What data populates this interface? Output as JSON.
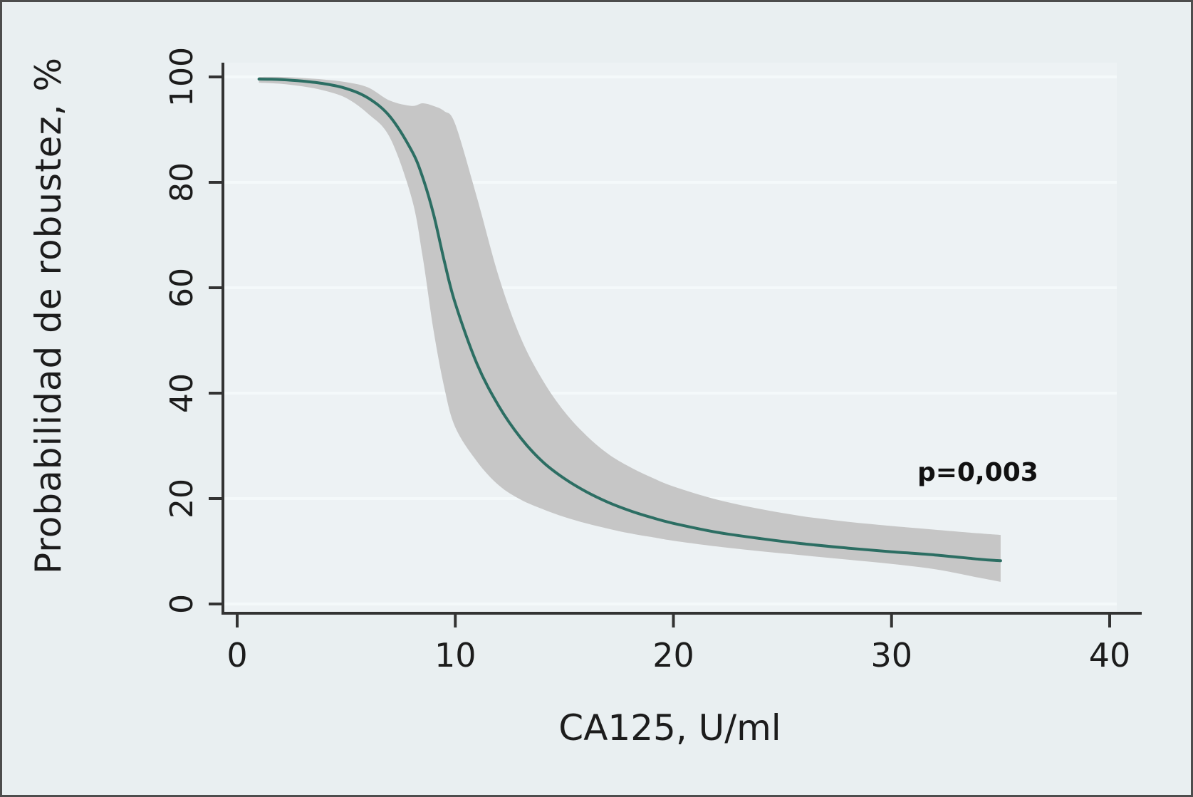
{
  "chart_data": {
    "type": "line",
    "title": "",
    "xlabel": "CA125, U/ml",
    "ylabel": "Probabilidad de robustez, %",
    "xlim": [
      0,
      40
    ],
    "ylim": [
      0,
      100
    ],
    "x_ticks": [
      0,
      10,
      20,
      30,
      40
    ],
    "y_ticks": [
      0,
      20,
      40,
      60,
      80,
      100
    ],
    "grid": "horizontal",
    "legend": "none",
    "annotation": "p=0,003",
    "annotation_xy": [
      33,
      24
    ],
    "x": [
      1,
      2,
      3,
      4,
      5,
      6,
      7,
      8,
      8.5,
      9,
      9.5,
      10,
      11,
      12,
      13,
      14,
      15,
      16,
      17,
      18,
      19,
      20,
      22,
      24,
      26,
      28,
      30,
      32,
      34,
      35
    ],
    "series": [
      {
        "name": "fitted probability",
        "values": [
          99.6,
          99.5,
          99.2,
          98.7,
          97.8,
          96.0,
          92.5,
          86.0,
          81.0,
          74.0,
          65.0,
          57.0,
          45.5,
          37.5,
          31.5,
          27.0,
          23.8,
          21.3,
          19.3,
          17.7,
          16.4,
          15.3,
          13.6,
          12.4,
          11.4,
          10.6,
          9.9,
          9.3,
          8.5,
          8.2
        ]
      },
      {
        "name": "95% CI upper",
        "values": [
          100,
          100,
          99.8,
          99.5,
          99.0,
          98.0,
          95.5,
          94.5,
          95.0,
          94.5,
          93.5,
          91.0,
          77.0,
          62.0,
          50.5,
          42.5,
          36.5,
          32.0,
          28.5,
          26.0,
          24.0,
          22.3,
          19.8,
          18.0,
          16.6,
          15.6,
          14.8,
          14.1,
          13.4,
          13.1
        ]
      },
      {
        "name": "95% CI lower",
        "values": [
          98.9,
          98.7,
          98.2,
          97.4,
          96.0,
          93.0,
          88.5,
          77.0,
          66.0,
          52.0,
          41.0,
          33.5,
          27.0,
          22.5,
          19.8,
          18.0,
          16.5,
          15.3,
          14.3,
          13.4,
          12.7,
          12.0,
          10.9,
          10.0,
          9.2,
          8.4,
          7.6,
          6.6,
          5.0,
          4.2
        ]
      }
    ],
    "colors": {
      "line": "#2c6e63",
      "band": "#c6c6c6",
      "grid": "#f4f9fa",
      "axis": "#333333",
      "background": "#e9eff1",
      "plot_background": "#edf2f4",
      "text": "#1c1c1c"
    }
  }
}
